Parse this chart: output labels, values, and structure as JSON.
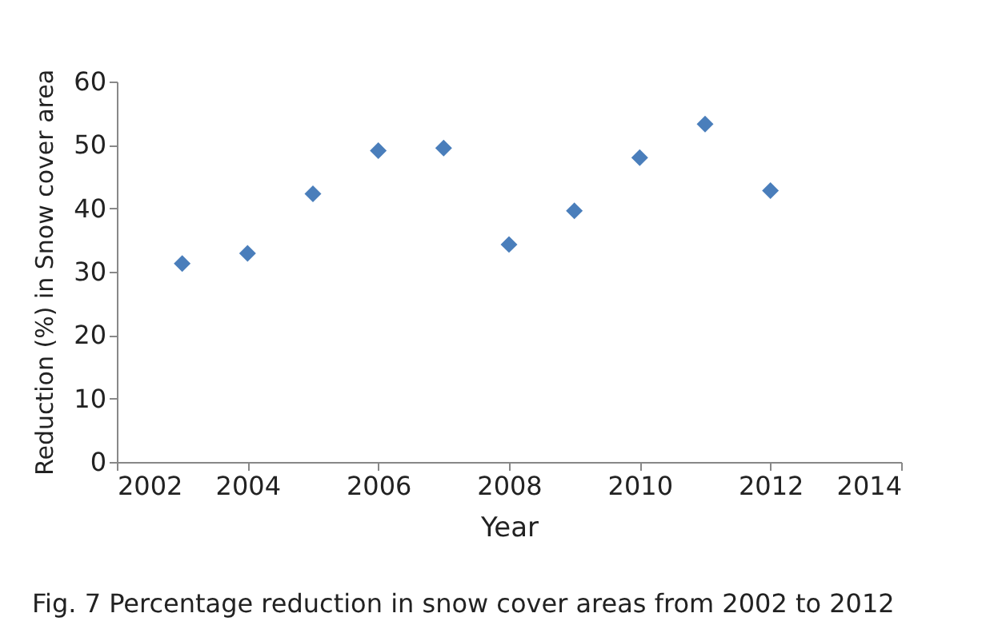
{
  "chart_data": {
    "type": "scatter",
    "xlabel": "Year",
    "ylabel": "Reduction (%) in Snow cover area",
    "annotations": [
      "Fig. 7 Percentage reduction in snow cover areas from 2002 to 2012"
    ],
    "x": [
      2003,
      2004,
      2005,
      2006,
      2007,
      2008,
      2009,
      2010,
      2011,
      2012
    ],
    "series": [
      {
        "color": "#4a7ebb",
        "values": [
          31.3,
          32.9,
          42.3,
          49.1,
          49.5,
          34.3,
          39.6,
          48.0,
          53.3,
          42.8
        ]
      }
    ],
    "xlim": [
      2002,
      2014
    ],
    "xticks": [
      2002,
      2004,
      2006,
      2008,
      2010,
      2012,
      2014
    ],
    "ylim": [
      0,
      60
    ],
    "yticks": [
      0,
      10,
      20,
      30,
      40,
      50,
      60
    ],
    "marker": "diamond",
    "grid": false
  }
}
